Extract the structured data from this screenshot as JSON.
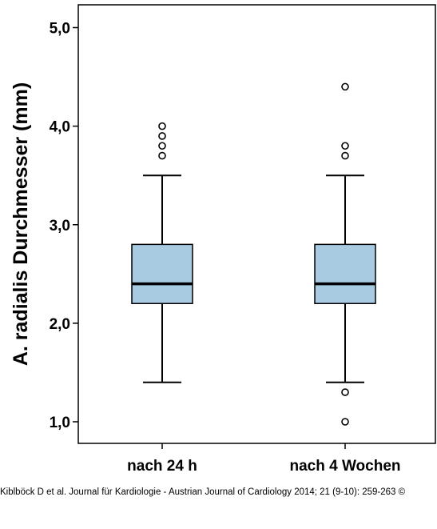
{
  "chart_data": {
    "type": "boxplot",
    "ylabel": "A. radialis Durchmesser (mm)",
    "xlabel": "",
    "ylim": [
      0.95,
      5.2
    ],
    "yticks": [
      {
        "value": 1.0,
        "label": "1,0"
      },
      {
        "value": 2.0,
        "label": "2,0"
      },
      {
        "value": 3.0,
        "label": "3,0"
      },
      {
        "value": 4.0,
        "label": "4,0"
      },
      {
        "value": 5.0,
        "label": "5,0"
      }
    ],
    "categories": [
      "nach 24 h",
      "nach 4 Wochen"
    ],
    "boxes": [
      {
        "category": "nach 24 h",
        "whisker_low": 1.4,
        "q1": 2.2,
        "median": 2.4,
        "q3": 2.8,
        "whisker_high": 3.5,
        "outliers": [
          3.7,
          3.8,
          3.9,
          4.0
        ]
      },
      {
        "category": "nach 4 Wochen",
        "whisker_low": 1.4,
        "q1": 2.2,
        "median": 2.4,
        "q3": 2.8,
        "whisker_high": 3.5,
        "outliers": [
          1.0,
          1.3,
          3.7,
          3.8,
          4.4
        ]
      }
    ],
    "box_color": "#a8cbe2",
    "grid": false
  },
  "credit": "Kiblböck D et al. Journal für Kardiologie - Austrian Journal of Cardiology 2014; 21 (9-10): 259-263 ©"
}
